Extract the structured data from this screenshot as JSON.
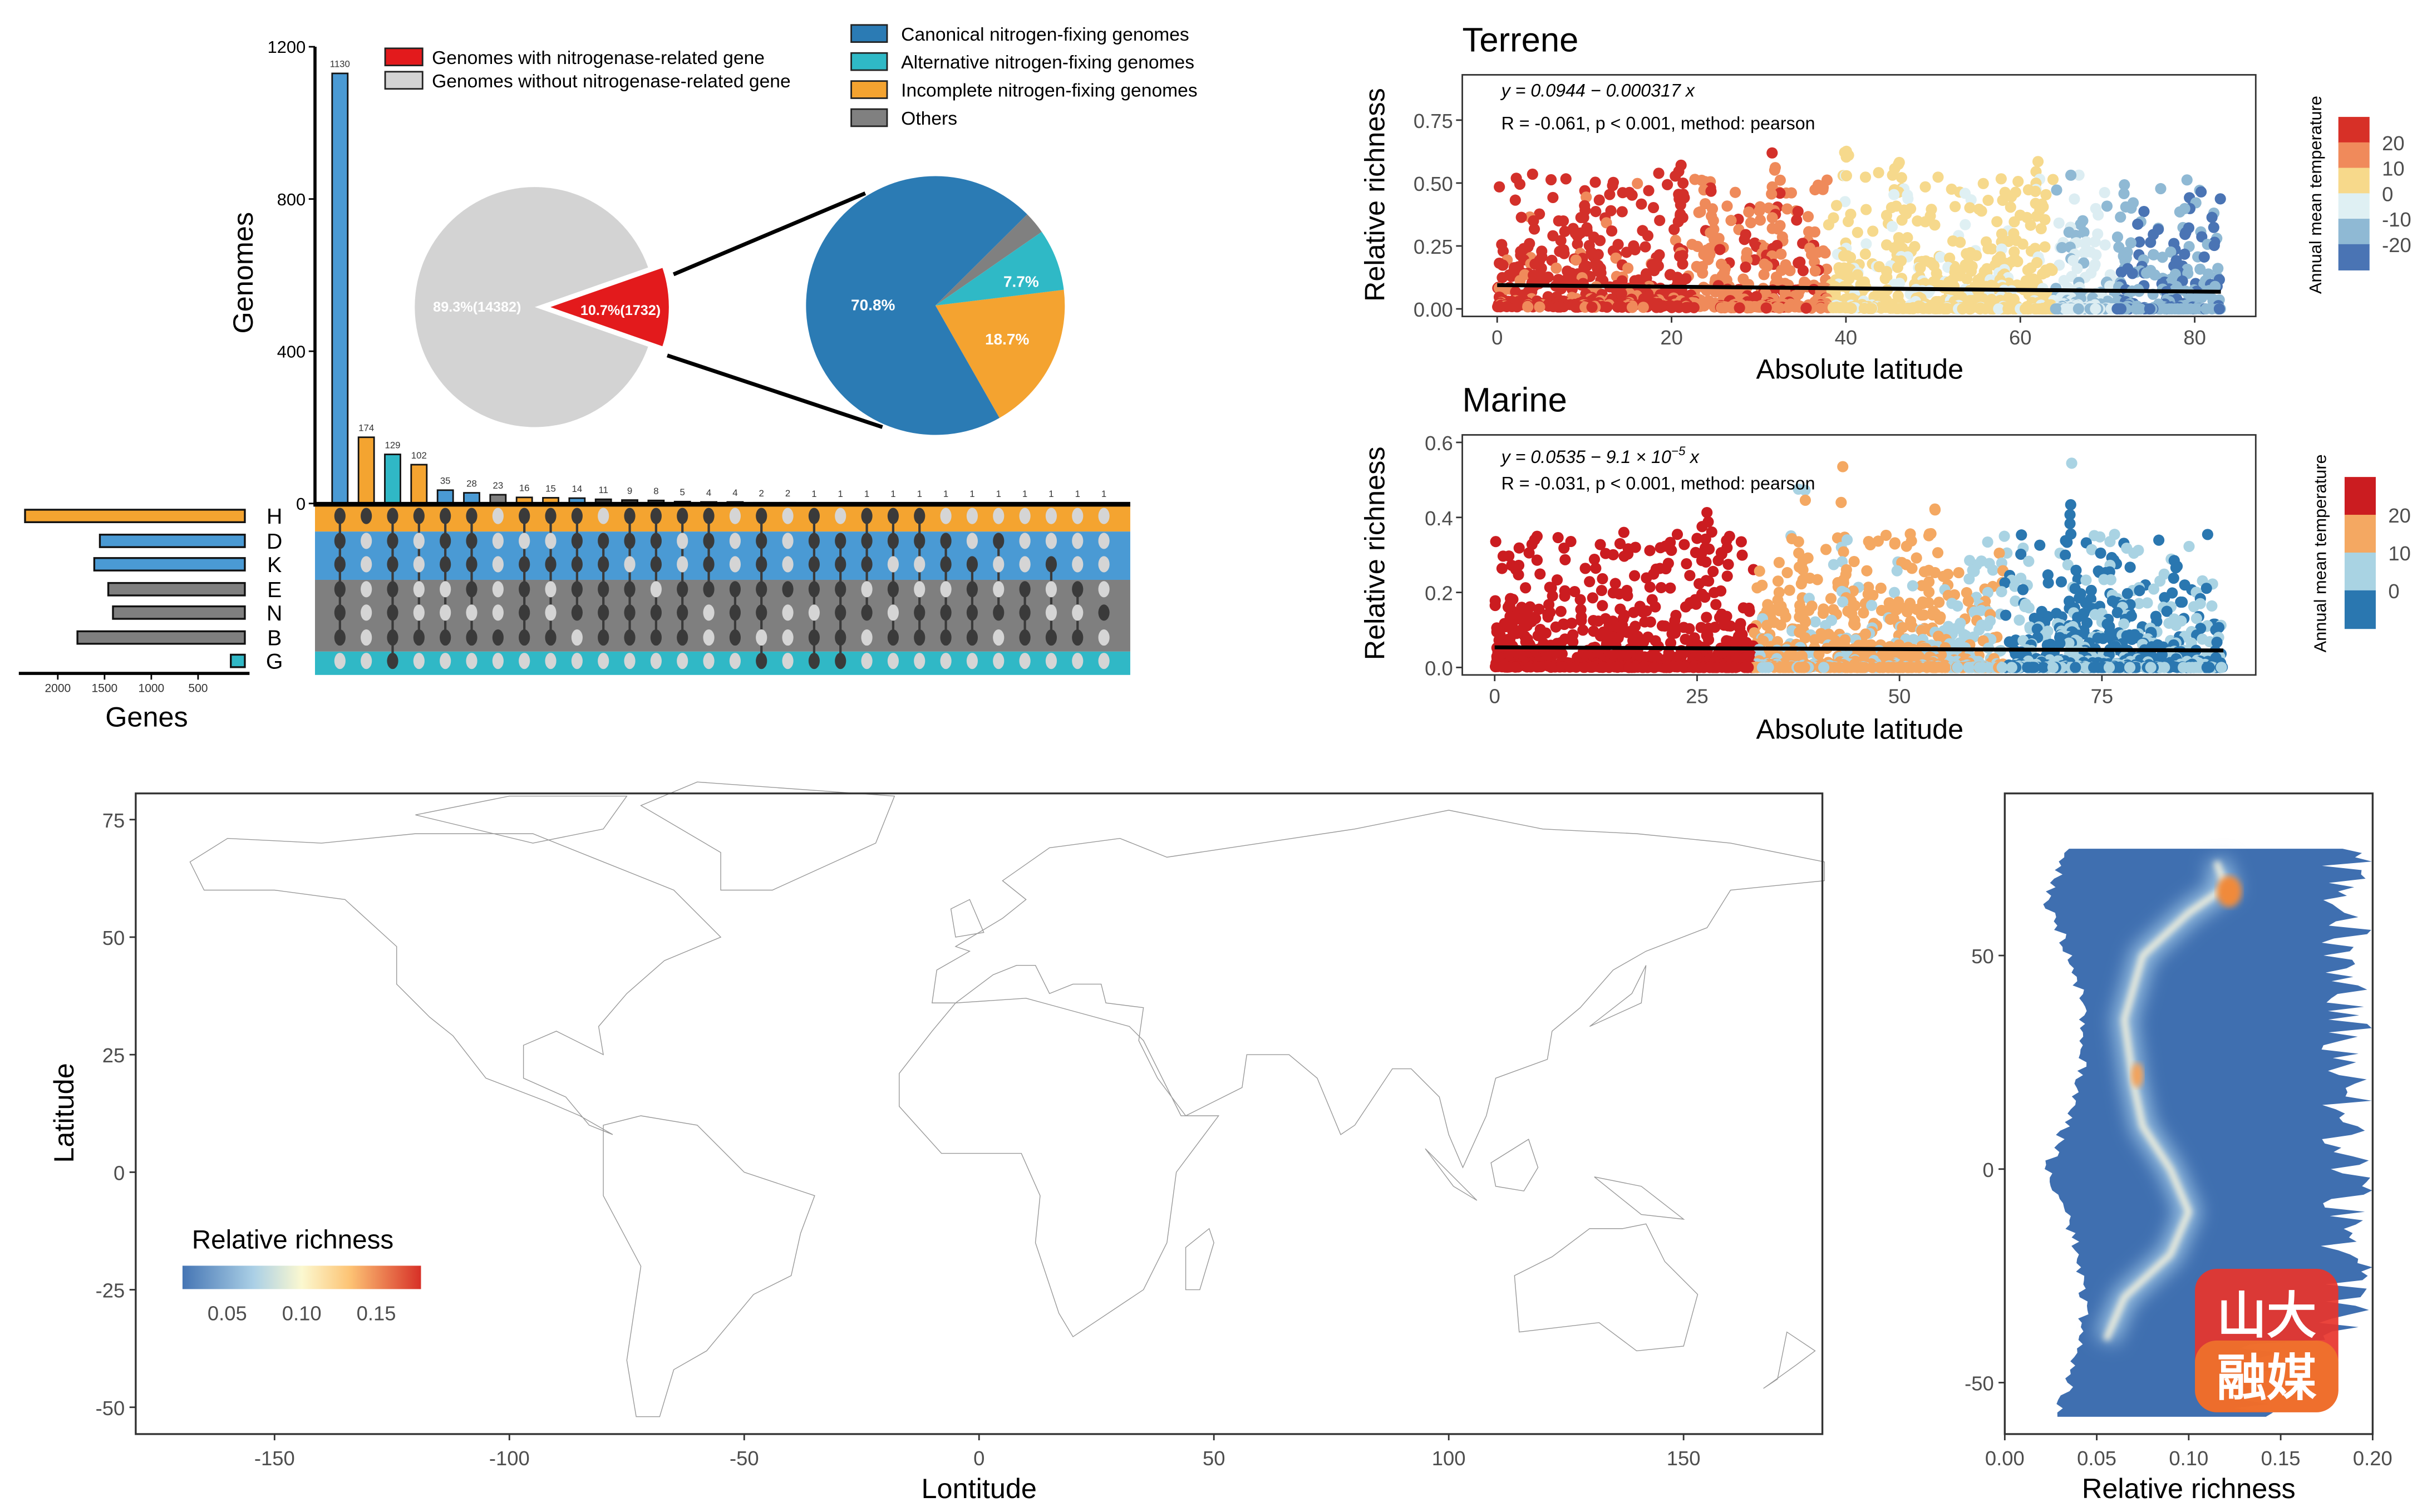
{
  "colors": {
    "blue": "#4a9ad4",
    "orange": "#f4a430",
    "cyan": "#30b8c6",
    "gray": "#7f7f7f",
    "dark": "#3a3a3a",
    "light_dot": "#d5d5d5",
    "red": "#e31a1c",
    "pie_gray": "#d3d3d3",
    "canonical": "#2b7bb4",
    "alternative": "#2fb9c6",
    "incomplete": "#f4a330",
    "others": "#808080"
  },
  "chart_data": [
    {
      "type": "bar",
      "id": "upset",
      "ylabel": "Genomes",
      "ylim": [
        0,
        1200
      ],
      "yticks": [
        "0",
        "400",
        "800",
        "1200"
      ],
      "yticks_values": [
        0,
        400,
        800,
        1200
      ],
      "values": [
        1130,
        174,
        129,
        102,
        35,
        28,
        23,
        16,
        15,
        14,
        11,
        9,
        8,
        5,
        4,
        4,
        2,
        2,
        1,
        1,
        1,
        1,
        1,
        1,
        1,
        1,
        1,
        1,
        1,
        1
      ],
      "labels": [
        "1130",
        "174",
        "129",
        "102",
        "35",
        "28",
        "23",
        "16",
        "15",
        "14",
        "11",
        "9",
        "8",
        "5",
        "4",
        "4",
        "2",
        "2",
        "1",
        "1",
        "1",
        "1",
        "1",
        "1",
        "1",
        "1",
        "1",
        "1",
        "1",
        "1"
      ],
      "bar_color_keys": [
        "blue",
        "orange",
        "cyan",
        "orange",
        "blue",
        "blue",
        "gray",
        "orange",
        "orange",
        "blue",
        "dark",
        "dark",
        "dark",
        "dark",
        "dark",
        "dark",
        "dark",
        "dark",
        "dark",
        "dark",
        "dark",
        "dark",
        "dark",
        "dark",
        "dark",
        "dark",
        "dark",
        "dark",
        "dark",
        "dark"
      ],
      "sets": [
        "H",
        "D",
        "K",
        "E",
        "N",
        "B",
        "G"
      ],
      "set_band_colors": [
        "orange",
        "blue",
        "blue",
        "gray",
        "gray",
        "gray",
        "cyan"
      ],
      "matrix": [
        "1111110",
        "1000000",
        "1111111",
        "1000010",
        "1110010",
        "1111010",
        "0000010",
        "1011110",
        "1010010",
        "1111100",
        "0111110",
        "1101110",
        "1110110",
        "1001110",
        "1111000",
        "0001110",
        "1111101",
        "0001000",
        "1111011",
        "0111111",
        "1110100",
        "1101010",
        "1100110",
        "0110110",
        "0011110",
        "0100100",
        "0001110",
        "0010010",
        "0001010",
        "0000100"
      ]
    },
    {
      "type": "bar",
      "id": "set-sizes",
      "xlabel": "Genes",
      "categories": [
        "H",
        "D",
        "K",
        "E",
        "N",
        "B",
        "G"
      ],
      "values": [
        2350,
        1550,
        1610,
        1460,
        1410,
        1790,
        150
      ],
      "color_keys": [
        "orange",
        "blue",
        "blue",
        "gray",
        "gray",
        "gray",
        "cyan"
      ],
      "xticks": [
        "2000",
        "1500",
        "1000",
        "500"
      ],
      "xticks_values": [
        2000,
        1500,
        1000,
        500
      ]
    },
    {
      "type": "pie",
      "id": "genome-pie",
      "legend": [
        "Genomes with nitrogenase-related gene",
        "Genomes without nitrogenase-related gene"
      ],
      "values": [
        10.7,
        89.3
      ],
      "counts": [
        1732,
        14382
      ],
      "labels": [
        "10.7%(1732)",
        "89.3%(14382)"
      ]
    },
    {
      "type": "pie",
      "id": "nitrogen-pie",
      "legend": [
        "Canonical nitrogen-fixing genomes",
        "Alternative nitrogen-fixing genomes",
        "Incomplete nitrogen-fixing genomes",
        "Others"
      ],
      "values": [
        70.8,
        7.7,
        18.7,
        2.8
      ],
      "labels": [
        "70.8%",
        "7.7%",
        "18.7%",
        ""
      ]
    },
    {
      "type": "scatter",
      "id": "terrene",
      "title": "Terrene",
      "xlabel": "Absolute latitude",
      "ylabel": "Relative richness",
      "xlim": [
        -4,
        87
      ],
      "ylim": [
        -0.03,
        0.93
      ],
      "xticks": [
        "0",
        "20",
        "40",
        "60",
        "80"
      ],
      "xticks_values": [
        0,
        20,
        40,
        60,
        80
      ],
      "yticks": [
        "0.00",
        "0.25",
        "0.50",
        "0.75"
      ],
      "yticks_values": [
        0,
        0.25,
        0.5,
        0.75
      ],
      "equation": "y = 0.0944 − 0.000317 x",
      "stats": "R = -0.061, p < 0.001, method: pearson",
      "fit": {
        "intercept": 0.0944,
        "slope": -0.000317,
        "x_range": [
          0,
          83
        ]
      },
      "legend_title": "Annual mean temperature",
      "legend_labels": [
        "20",
        "10",
        "0",
        "-10",
        "-20"
      ],
      "legend_colors": [
        "#d73027",
        "#f08a5b",
        "#f7d98b",
        "#dff0f3",
        "#8fb9d4",
        "#4a74b4"
      ]
    },
    {
      "type": "scatter",
      "id": "marine",
      "title": "Marine",
      "xlabel": "Absolute latitude",
      "ylabel": "Relative richness",
      "xlim": [
        -4,
        94
      ],
      "ylim": [
        -0.02,
        0.62
      ],
      "xticks": [
        "0",
        "25",
        "50",
        "75"
      ],
      "xticks_values": [
        0,
        25,
        50,
        75
      ],
      "yticks": [
        "0.0",
        "0.2",
        "0.4",
        "0.6"
      ],
      "yticks_values": [
        0,
        0.2,
        0.4,
        0.6
      ],
      "equation_main": "y = 0.0535 − 9.1 × 10",
      "equation_exp": "−5",
      "equation_tail": "x",
      "stats": "R = -0.031, p < 0.001, method: pearson",
      "fit": {
        "intercept": 0.0535,
        "slope": -9.1e-05,
        "x_range": [
          0,
          90
        ]
      },
      "legend_title": "Annual mean temperature",
      "legend_labels": [
        "20",
        "10",
        "0"
      ],
      "legend_colors": [
        "#cb1c20",
        "#f4a862",
        "#a9d3e3",
        "#2a77b0"
      ]
    },
    {
      "type": "heatmap",
      "id": "world-map",
      "xlabel": "Lontitude",
      "ylabel": "Latitude",
      "xticks": [
        "-150",
        "-100",
        "-50",
        "0",
        "50",
        "100",
        "150"
      ],
      "xticks_values": [
        -150,
        -100,
        -50,
        0,
        50,
        100,
        150
      ],
      "yticks": [
        "75",
        "50",
        "25",
        "0",
        "-25",
        "-50"
      ],
      "yticks_values": [
        75,
        50,
        25,
        0,
        -25,
        -50
      ],
      "legend_title": "Relative richness",
      "legend_labels": [
        "0.05",
        "0.10",
        "0.15"
      ],
      "legend_values": [
        0.05,
        0.1,
        0.15
      ],
      "legend_range": [
        0.02,
        0.18
      ]
    },
    {
      "type": "heatmap",
      "id": "latitude-profile",
      "xlabel": "Relative richness",
      "xticks": [
        "0.00",
        "0.05",
        "0.10",
        "0.15",
        "0.20"
      ],
      "xticks_values": [
        0,
        0.05,
        0.1,
        0.15,
        0.2
      ],
      "yticks": [
        "50",
        "0",
        "-50"
      ],
      "yticks_values": [
        50,
        0,
        -50
      ]
    }
  ],
  "watermark": "山大融媒"
}
